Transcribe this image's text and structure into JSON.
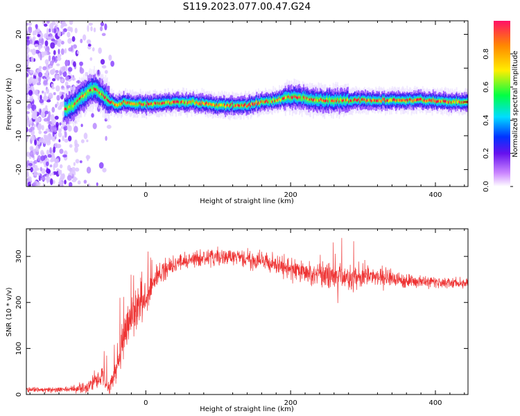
{
  "title": "S119.2023.077.00.47.G24",
  "colors": {
    "snr_line": "#ee3333",
    "trace_dark": "#ff1133",
    "scatter": "#7722ee",
    "axis": "#000000"
  },
  "chart_data": [
    {
      "type": "heatmap",
      "xlabel": "Height of straight line (km)",
      "ylabel": "Frequency (Hz)",
      "xlim": [
        -165,
        445
      ],
      "ylim": [
        -25,
        24
      ],
      "x_ticks": [
        0,
        200,
        400
      ],
      "y_ticks": [
        -20,
        -10,
        0,
        10,
        20
      ],
      "x_tick_labels": [
        "0",
        "200",
        "400"
      ],
      "y_tick_labels": [
        "-20",
        "-10",
        "0",
        "10",
        "20"
      ],
      "colorbar": {
        "label": "Normalized spectral amplitude",
        "range": [
          0,
          1
        ],
        "ticks": [
          0.0,
          0.2,
          0.4,
          0.6,
          0.8
        ],
        "tick_labels": [
          "0.0",
          "0.2",
          "0.4",
          "0.6",
          "0.8"
        ],
        "colormap": [
          "#ffffff",
          "#7711ee",
          "#0044ff",
          "#00eeff",
          "#00ff44",
          "#ffee00",
          "#ff8800",
          "#ff1155"
        ]
      },
      "noise_region": [
        -165,
        -85
      ],
      "frequency_trace": [
        [
          -110,
          -2
        ],
        [
          -100,
          -1
        ],
        [
          -90,
          1
        ],
        [
          -80,
          3
        ],
        [
          -70,
          4
        ],
        [
          -60,
          2
        ],
        [
          -50,
          0
        ],
        [
          -40,
          -1
        ],
        [
          -30,
          0
        ],
        [
          -20,
          -0.5
        ],
        [
          0,
          -0.5
        ],
        [
          20,
          -0.5
        ],
        [
          40,
          0
        ],
        [
          60,
          0
        ],
        [
          80,
          -0.5
        ],
        [
          100,
          -1
        ],
        [
          120,
          -1
        ],
        [
          140,
          -1
        ],
        [
          160,
          0
        ],
        [
          180,
          0.5
        ],
        [
          200,
          1.5
        ],
        [
          220,
          1
        ],
        [
          240,
          0.5
        ],
        [
          260,
          0.5
        ],
        [
          280,
          0.5
        ],
        [
          300,
          0.5
        ],
        [
          320,
          0.5
        ],
        [
          340,
          0.5
        ],
        [
          360,
          0.5
        ],
        [
          380,
          0.5
        ],
        [
          400,
          0.5
        ],
        [
          420,
          0
        ],
        [
          445,
          0
        ]
      ]
    },
    {
      "type": "line",
      "xlabel": "Height of straight line (km)",
      "ylabel": "SNR (10 * v/v)",
      "xlim": [
        -165,
        445
      ],
      "ylim": [
        0,
        360
      ],
      "x_ticks": [
        0,
        200,
        400
      ],
      "y_ticks": [
        0,
        100,
        200,
        300
      ],
      "x_tick_labels": [
        "0",
        "200",
        "400"
      ],
      "y_tick_labels": [
        "0",
        "100",
        "200",
        "300"
      ],
      "series": [
        {
          "envelope": [
            [
              -165,
              10
            ],
            [
              -120,
              10
            ],
            [
              -100,
              12
            ],
            [
              -80,
              18
            ],
            [
              -70,
              30
            ],
            [
              -60,
              45
            ],
            [
              -55,
              20
            ],
            [
              -50,
              12
            ],
            [
              -40,
              60
            ],
            [
              -30,
              120
            ],
            [
              -20,
              170
            ],
            [
              -10,
              190
            ],
            [
              0,
              205
            ],
            [
              10,
              240
            ],
            [
              20,
              265
            ],
            [
              40,
              285
            ],
            [
              60,
              292
            ],
            [
              80,
              296
            ],
            [
              100,
              298
            ],
            [
              120,
              298
            ],
            [
              140,
              295
            ],
            [
              160,
              290
            ],
            [
              180,
              282
            ],
            [
              200,
              272
            ],
            [
              220,
              265
            ],
            [
              240,
              260
            ],
            [
              260,
              258
            ],
            [
              280,
              255
            ],
            [
              300,
              258
            ],
            [
              320,
              255
            ],
            [
              340,
              252
            ],
            [
              360,
              248
            ],
            [
              380,
              246
            ],
            [
              400,
              244
            ],
            [
              420,
              242
            ],
            [
              445,
              242
            ]
          ],
          "spread": [
            [
              -165,
              6
            ],
            [
              -100,
              8
            ],
            [
              -70,
              25
            ],
            [
              -50,
              20
            ],
            [
              -30,
              50
            ],
            [
              -10,
              50
            ],
            [
              10,
              35
            ],
            [
              40,
              20
            ],
            [
              100,
              22
            ],
            [
              150,
              22
            ],
            [
              200,
              25
            ],
            [
              260,
              32
            ],
            [
              300,
              30
            ],
            [
              340,
              22
            ],
            [
              400,
              14
            ],
            [
              445,
              12
            ]
          ]
        }
      ]
    }
  ]
}
